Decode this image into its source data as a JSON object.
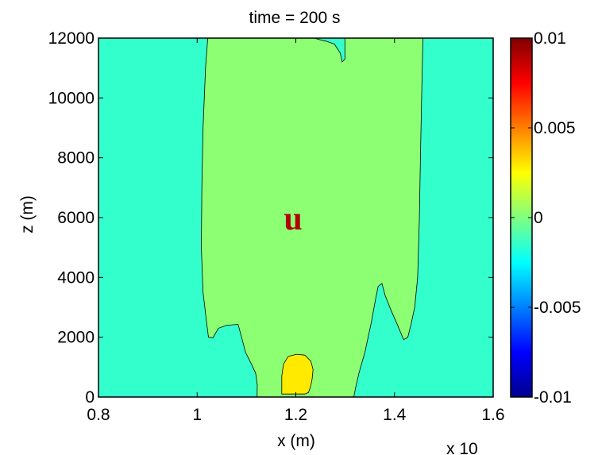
{
  "chart_data": {
    "type": "heatmap",
    "title": "time = 200 s",
    "xlabel": "x (m)",
    "ylabel": "z (m)",
    "xlim": [
      0.8,
      1.6
    ],
    "ylim": [
      0,
      12000
    ],
    "x_ticks": [
      "0.8",
      "1",
      "1.2",
      "1.4",
      "1.6"
    ],
    "y_ticks": [
      "0",
      "2000",
      "4000",
      "6000",
      "8000",
      "10000",
      "12000"
    ],
    "x_exponent_label": "x 10",
    "field_label": "u",
    "colorbar": {
      "limits": [
        -0.01,
        0.01
      ],
      "ticks": [
        "0.01",
        "0.005",
        "0",
        "-0.005",
        "-0.01"
      ],
      "colormap": "jet"
    },
    "colors": {
      "background_level": "#33ffcc",
      "plume_level": "#8cff73",
      "core_level": "#ffea00",
      "label_color": "#b00000"
    },
    "regions": [
      {
        "name": "plume",
        "level": "plume_level",
        "polygon": [
          [
            1.0215,
            12000
          ],
          [
            1.017,
            11000
          ],
          [
            1.012,
            9000
          ],
          [
            1.0095,
            7000
          ],
          [
            1.0085,
            5000
          ],
          [
            1.012,
            3500
          ],
          [
            1.019,
            2500
          ],
          [
            1.023,
            2000
          ],
          [
            1.032,
            1980
          ],
          [
            1.043,
            2300
          ],
          [
            1.06,
            2400
          ],
          [
            1.083,
            2430
          ],
          [
            1.09,
            2000
          ],
          [
            1.098,
            1500
          ],
          [
            1.11,
            1100
          ],
          [
            1.1185,
            800
          ],
          [
            1.122,
            400
          ],
          [
            1.1215,
            0
          ],
          [
            1.3175,
            0
          ],
          [
            1.321,
            300
          ],
          [
            1.328,
            800
          ],
          [
            1.34,
            1500
          ],
          [
            1.353,
            2500
          ],
          [
            1.362,
            3300
          ],
          [
            1.367,
            3700
          ],
          [
            1.3745,
            3800
          ],
          [
            1.381,
            3400
          ],
          [
            1.393,
            2900
          ],
          [
            1.405,
            2450
          ],
          [
            1.4185,
            1920
          ],
          [
            1.427,
            2000
          ],
          [
            1.433,
            2400
          ],
          [
            1.441,
            3000
          ],
          [
            1.447,
            4000
          ],
          [
            1.4505,
            6000
          ],
          [
            1.4525,
            8000
          ],
          [
            1.455,
            10000
          ],
          [
            1.4575,
            12000
          ],
          [
            1.2995,
            12000
          ],
          [
            1.2995,
            11300
          ],
          [
            1.294,
            11200
          ],
          [
            1.29,
            11500
          ],
          [
            1.278,
            11800
          ],
          [
            1.261,
            11900
          ],
          [
            1.248,
            11950
          ],
          [
            1.237,
            12000
          ]
        ]
      },
      {
        "name": "core",
        "level": "core_level",
        "polygon": [
          [
            1.1715,
            100
          ],
          [
            1.1715,
            700
          ],
          [
            1.175,
            1100
          ],
          [
            1.1845,
            1360
          ],
          [
            1.202,
            1430
          ],
          [
            1.2185,
            1400
          ],
          [
            1.2305,
            1200
          ],
          [
            1.235,
            920
          ],
          [
            1.233,
            600
          ],
          [
            1.23,
            350
          ],
          [
            1.2255,
            150
          ],
          [
            1.218,
            100
          ]
        ]
      }
    ]
  }
}
